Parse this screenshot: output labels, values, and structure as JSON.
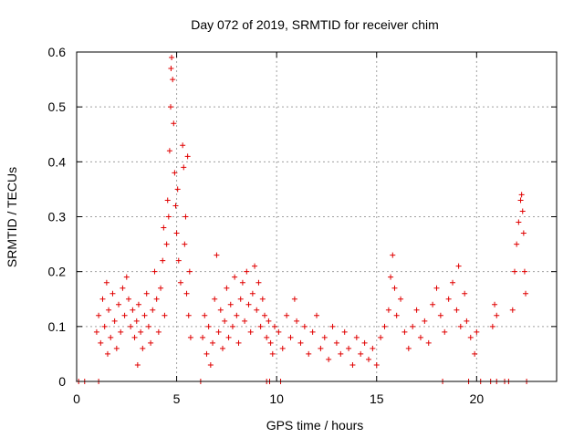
{
  "chart_data": {
    "type": "scatter",
    "title": "Day 072 of 2019, SRMTID for receiver chim",
    "xlabel": "GPS time / hours",
    "ylabel": "SRMTID / TECUs",
    "xlim": [
      0,
      24
    ],
    "ylim": [
      0,
      0.6
    ],
    "xticks": [
      0,
      5,
      10,
      15,
      20
    ],
    "yticks": [
      0,
      0.1,
      0.2,
      0.3,
      0.4,
      0.5,
      0.6
    ],
    "xtick_labels": [
      "0",
      "5",
      "10",
      "15",
      "20"
    ],
    "ytick_labels": [
      "0",
      "0.1",
      "0.2",
      "0.3",
      "0.4",
      "0.5",
      "0.6"
    ],
    "grid": true,
    "marker": "+",
    "color": "#e00000",
    "series": [
      {
        "name": "SRMTID",
        "points": [
          [
            0.1,
            0.0
          ],
          [
            0.4,
            0.0
          ],
          [
            1.1,
            0.0
          ],
          [
            6.2,
            0.0
          ],
          [
            9.5,
            0.0
          ],
          [
            9.65,
            0.0
          ],
          [
            10.2,
            0.0
          ],
          [
            18.3,
            0.0
          ],
          [
            19.6,
            0.0
          ],
          [
            20.2,
            0.0
          ],
          [
            20.7,
            0.0
          ],
          [
            21.0,
            0.0
          ],
          [
            21.4,
            0.0
          ],
          [
            21.6,
            0.0
          ],
          [
            22.5,
            0.0
          ],
          [
            1.0,
            0.09
          ],
          [
            1.1,
            0.12
          ],
          [
            1.2,
            0.07
          ],
          [
            1.3,
            0.15
          ],
          [
            1.4,
            0.1
          ],
          [
            1.5,
            0.18
          ],
          [
            1.55,
            0.05
          ],
          [
            1.6,
            0.13
          ],
          [
            1.7,
            0.08
          ],
          [
            1.8,
            0.16
          ],
          [
            1.9,
            0.11
          ],
          [
            2.0,
            0.06
          ],
          [
            2.1,
            0.14
          ],
          [
            2.2,
            0.09
          ],
          [
            2.3,
            0.17
          ],
          [
            2.4,
            0.12
          ],
          [
            2.5,
            0.19
          ],
          [
            2.6,
            0.15
          ],
          [
            2.7,
            0.1
          ],
          [
            2.8,
            0.13
          ],
          [
            2.9,
            0.08
          ],
          [
            3.0,
            0.11
          ],
          [
            3.05,
            0.03
          ],
          [
            3.1,
            0.14
          ],
          [
            3.2,
            0.09
          ],
          [
            3.3,
            0.06
          ],
          [
            3.4,
            0.12
          ],
          [
            3.5,
            0.16
          ],
          [
            3.6,
            0.1
          ],
          [
            3.7,
            0.07
          ],
          [
            3.8,
            0.13
          ],
          [
            3.9,
            0.2
          ],
          [
            4.0,
            0.15
          ],
          [
            4.1,
            0.09
          ],
          [
            4.2,
            0.17
          ],
          [
            4.3,
            0.22
          ],
          [
            4.35,
            0.28
          ],
          [
            4.4,
            0.12
          ],
          [
            4.5,
            0.25
          ],
          [
            4.55,
            0.33
          ],
          [
            4.6,
            0.3
          ],
          [
            4.65,
            0.42
          ],
          [
            4.7,
            0.5
          ],
          [
            4.72,
            0.57
          ],
          [
            4.75,
            0.59
          ],
          [
            4.8,
            0.55
          ],
          [
            4.85,
            0.47
          ],
          [
            4.9,
            0.38
          ],
          [
            4.95,
            0.32
          ],
          [
            5.0,
            0.27
          ],
          [
            5.05,
            0.35
          ],
          [
            5.1,
            0.22
          ],
          [
            5.2,
            0.18
          ],
          [
            5.3,
            0.43
          ],
          [
            5.35,
            0.39
          ],
          [
            5.4,
            0.25
          ],
          [
            5.45,
            0.3
          ],
          [
            5.5,
            0.16
          ],
          [
            5.55,
            0.41
          ],
          [
            5.6,
            0.12
          ],
          [
            5.65,
            0.2
          ],
          [
            5.7,
            0.08
          ],
          [
            6.3,
            0.08
          ],
          [
            6.4,
            0.12
          ],
          [
            6.5,
            0.05
          ],
          [
            6.6,
            0.1
          ],
          [
            6.7,
            0.03
          ],
          [
            6.8,
            0.07
          ],
          [
            6.9,
            0.15
          ],
          [
            7.0,
            0.23
          ],
          [
            7.1,
            0.09
          ],
          [
            7.2,
            0.13
          ],
          [
            7.3,
            0.06
          ],
          [
            7.4,
            0.11
          ],
          [
            7.5,
            0.17
          ],
          [
            7.6,
            0.08
          ],
          [
            7.7,
            0.14
          ],
          [
            7.8,
            0.1
          ],
          [
            7.9,
            0.19
          ],
          [
            8.0,
            0.12
          ],
          [
            8.1,
            0.07
          ],
          [
            8.2,
            0.15
          ],
          [
            8.3,
            0.18
          ],
          [
            8.4,
            0.11
          ],
          [
            8.5,
            0.2
          ],
          [
            8.6,
            0.14
          ],
          [
            8.7,
            0.09
          ],
          [
            8.8,
            0.16
          ],
          [
            8.9,
            0.21
          ],
          [
            9.0,
            0.13
          ],
          [
            9.1,
            0.18
          ],
          [
            9.2,
            0.1
          ],
          [
            9.3,
            0.15
          ],
          [
            9.4,
            0.12
          ],
          [
            9.5,
            0.08
          ],
          [
            9.6,
            0.11
          ],
          [
            9.7,
            0.07
          ],
          [
            9.8,
            0.05
          ],
          [
            9.9,
            0.1
          ],
          [
            10.1,
            0.09
          ],
          [
            10.3,
            0.06
          ],
          [
            10.5,
            0.12
          ],
          [
            10.7,
            0.08
          ],
          [
            10.9,
            0.15
          ],
          [
            11.0,
            0.11
          ],
          [
            11.2,
            0.07
          ],
          [
            11.4,
            0.1
          ],
          [
            11.6,
            0.05
          ],
          [
            11.8,
            0.09
          ],
          [
            12.0,
            0.12
          ],
          [
            12.2,
            0.06
          ],
          [
            12.4,
            0.08
          ],
          [
            12.6,
            0.04
          ],
          [
            12.8,
            0.1
          ],
          [
            13.0,
            0.07
          ],
          [
            13.2,
            0.05
          ],
          [
            13.4,
            0.09
          ],
          [
            13.6,
            0.06
          ],
          [
            13.8,
            0.03
          ],
          [
            14.0,
            0.08
          ],
          [
            14.2,
            0.05
          ],
          [
            14.4,
            0.07
          ],
          [
            14.6,
            0.04
          ],
          [
            14.8,
            0.06
          ],
          [
            15.0,
            0.03
          ],
          [
            15.2,
            0.08
          ],
          [
            15.4,
            0.1
          ],
          [
            15.6,
            0.13
          ],
          [
            15.7,
            0.19
          ],
          [
            15.8,
            0.23
          ],
          [
            15.9,
            0.17
          ],
          [
            16.0,
            0.12
          ],
          [
            16.2,
            0.15
          ],
          [
            16.4,
            0.09
          ],
          [
            16.6,
            0.06
          ],
          [
            16.8,
            0.1
          ],
          [
            17.0,
            0.13
          ],
          [
            17.2,
            0.08
          ],
          [
            17.4,
            0.11
          ],
          [
            17.6,
            0.07
          ],
          [
            17.8,
            0.14
          ],
          [
            18.0,
            0.17
          ],
          [
            18.2,
            0.12
          ],
          [
            18.4,
            0.09
          ],
          [
            18.6,
            0.15
          ],
          [
            18.8,
            0.18
          ],
          [
            19.0,
            0.13
          ],
          [
            19.1,
            0.21
          ],
          [
            19.2,
            0.1
          ],
          [
            19.4,
            0.16
          ],
          [
            19.5,
            0.11
          ],
          [
            19.7,
            0.08
          ],
          [
            19.9,
            0.05
          ],
          [
            20.0,
            0.09
          ],
          [
            20.8,
            0.1
          ],
          [
            20.9,
            0.14
          ],
          [
            21.0,
            0.12
          ],
          [
            21.8,
            0.13
          ],
          [
            21.9,
            0.2
          ],
          [
            22.0,
            0.25
          ],
          [
            22.1,
            0.29
          ],
          [
            22.2,
            0.33
          ],
          [
            22.25,
            0.34
          ],
          [
            22.3,
            0.31
          ],
          [
            22.35,
            0.27
          ],
          [
            22.4,
            0.2
          ],
          [
            22.45,
            0.16
          ]
        ]
      }
    ]
  }
}
